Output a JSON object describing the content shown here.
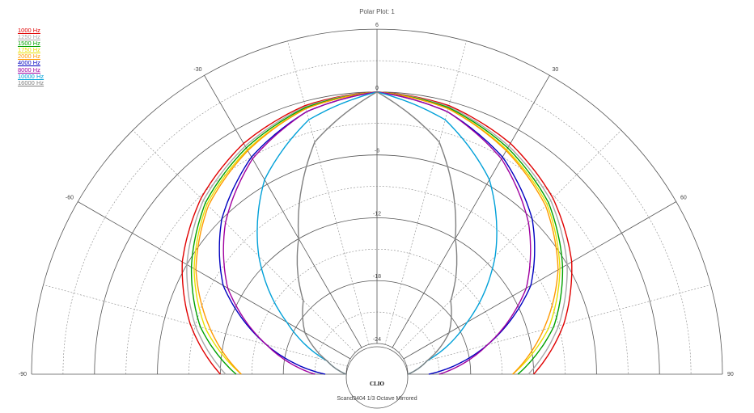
{
  "chart_data": {
    "type": "polar",
    "title": "Polar Plot: 1",
    "footer": "Scand3404   1/3 Octave   Mirrored",
    "brand_label": "CLIO",
    "radial_range": [
      -24,
      6
    ],
    "radial_ticks": [
      "6",
      "0",
      "-6",
      "-12",
      "-18",
      "-24"
    ],
    "angle_range": [
      -90,
      90
    ],
    "angle_ticks": [
      "-90",
      "-60",
      "-30",
      "30",
      "60",
      "90"
    ],
    "grid": true,
    "legend_placement": "top-left",
    "series": [
      {
        "name": "1000 Hz",
        "color": "#e00000",
        "angles": [
          0,
          15,
          30,
          45,
          60,
          75,
          90
        ],
        "values": [
          0,
          -0.4,
          -1.5,
          -3.2,
          -5.5,
          -8.5,
          -12
        ]
      },
      {
        "name": "1250 Hz",
        "color": "#a8a8a8",
        "angles": [
          0,
          15,
          30,
          45,
          60,
          75,
          90
        ],
        "values": [
          0,
          -0.5,
          -1.8,
          -3.5,
          -6.0,
          -9.0,
          -12.5
        ]
      },
      {
        "name": "1500 Hz",
        "color": "#00a000",
        "angles": [
          0,
          15,
          30,
          45,
          60,
          75,
          90
        ],
        "values": [
          0,
          -0.6,
          -2.0,
          -3.8,
          -6.5,
          -9.5,
          -13.5
        ]
      },
      {
        "name": "1750 Hz",
        "color": "#e8e000",
        "angles": [
          0,
          15,
          30,
          45,
          60,
          75,
          90
        ],
        "values": [
          0,
          -0.7,
          -2.2,
          -4.0,
          -6.8,
          -10.0,
          -14
        ]
      },
      {
        "name": "2000 Hz",
        "color": "#ff9900",
        "angles": [
          0,
          15,
          30,
          45,
          60,
          75,
          90
        ],
        "values": [
          0,
          -0.7,
          -2.3,
          -4.2,
          -7.0,
          -10.5,
          -14
        ]
      },
      {
        "name": "4000 Hz",
        "color": "#0000c0",
        "angles": [
          0,
          15,
          30,
          45,
          60,
          75,
          90
        ],
        "values": [
          0,
          -1.0,
          -3.0,
          -6.0,
          -10.0,
          -16.0,
          -22
        ]
      },
      {
        "name": "8000 Hz",
        "color": "#a000a0",
        "angles": [
          0,
          15,
          30,
          45,
          60,
          75,
          90
        ],
        "values": [
          0,
          -1.0,
          -3.2,
          -6.5,
          -10.5,
          -16.0,
          -21
        ]
      },
      {
        "name": "10000 Hz",
        "color": "#00a0d8",
        "angles": [
          0,
          15,
          30,
          45,
          60,
          75,
          90
        ],
        "values": [
          0,
          -1.8,
          -5.5,
          -11.0,
          -17.0,
          -22.0,
          -24
        ]
      },
      {
        "name": "16000 Hz",
        "color": "#808080",
        "angles": [
          0,
          15,
          30,
          45,
          60,
          75,
          90
        ],
        "values": [
          0,
          -4.0,
          -12.0,
          -17.0,
          -19.0,
          -22.0,
          -24
        ]
      }
    ]
  }
}
